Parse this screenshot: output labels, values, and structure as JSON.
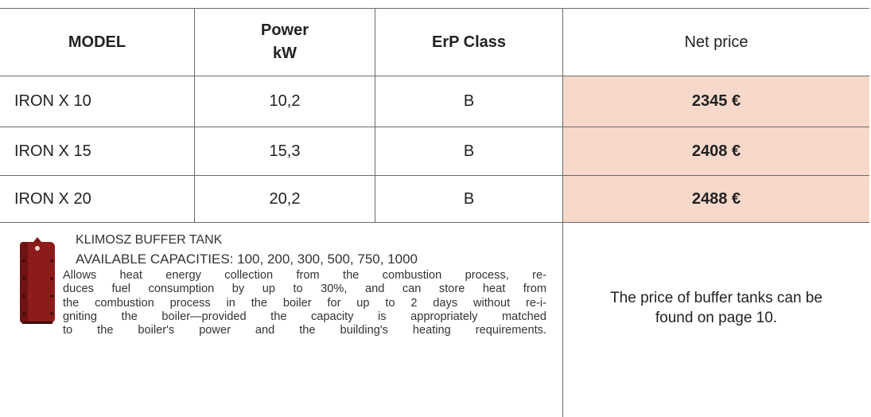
{
  "table": {
    "header": [
      [
        "MODEL"
      ],
      [
        "Power",
        "kW"
      ],
      [
        "ErP Class"
      ],
      [
        "Net price"
      ]
    ],
    "rows": [
      [
        "IRON X 10",
        "10,2",
        "B",
        "2345 €"
      ],
      [
        "IRON X 15",
        "15,3",
        "B",
        "2408 €"
      ],
      [
        "IRON X 20",
        "20,2",
        "B",
        "2488 €"
      ]
    ]
  },
  "buffer_tank": {
    "title": "KLIMOSZ BUFFER TANK",
    "capacities": "AVAILABLE CAPACITIES: 100, 200, 300, 500, 750, 1000",
    "description": [
      "Allows heat energy collection from the combustion process, re-",
      "duces fuel consumption by up to 30%, and can store heat from",
      "the combustion process in the boiler for up to 2 days without re-i-",
      "gniting the boiler—provided the capacity is appropriately matched",
      "to the boiler's power and the building's heating requirements."
    ],
    "price_note": [
      "The price of buffer tanks can be",
      "found on page 10."
    ]
  }
}
